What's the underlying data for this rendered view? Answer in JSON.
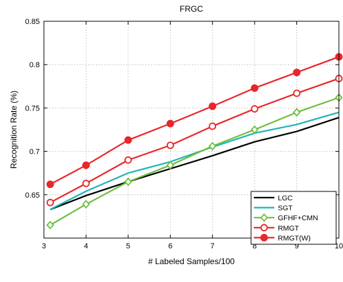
{
  "chart_data": {
    "type": "line",
    "title": "FRGC",
    "xlabel": "# Labeled Samples/100",
    "ylabel": "Recognition Rate (%)",
    "xlim": [
      3,
      10
    ],
    "ylim": [
      0.6,
      0.85
    ],
    "xticks": [
      3,
      4,
      5,
      6,
      7,
      8,
      9,
      10
    ],
    "yticks": [
      0.65,
      0.7,
      0.75,
      0.8,
      0.85
    ],
    "ytick_labels": [
      "0.65",
      "0.7",
      "0.75",
      "0.8",
      "0.85"
    ],
    "grid": true,
    "legend_position": "bottom-right",
    "x": [
      3.15,
      4,
      5,
      6,
      7,
      8,
      9,
      10
    ],
    "series": [
      {
        "name": "LGC",
        "color": "#000000",
        "marker": "none",
        "values": [
          0.633,
          0.649,
          0.665,
          0.68,
          0.695,
          0.711,
          0.723,
          0.739
        ]
      },
      {
        "name": "SGT",
        "color": "#1fb5b5",
        "marker": "none",
        "values": [
          0.633,
          0.654,
          0.675,
          0.688,
          0.705,
          0.721,
          0.731,
          0.745
        ]
      },
      {
        "name": "GFHF+CMN",
        "color": "#6dbf3f",
        "marker": "diamond",
        "values": [
          0.615,
          0.639,
          0.665,
          0.684,
          0.706,
          0.725,
          0.745,
          0.762
        ]
      },
      {
        "name": "RMGT",
        "color": "#e8262b",
        "marker": "circle-open",
        "values": [
          0.641,
          0.663,
          0.69,
          0.707,
          0.729,
          0.749,
          0.767,
          0.784
        ]
      },
      {
        "name": "RMGT(W)",
        "color": "#e8262b",
        "marker": "circle-filled",
        "values": [
          0.662,
          0.684,
          0.713,
          0.732,
          0.752,
          0.773,
          0.791,
          0.809
        ]
      }
    ]
  }
}
